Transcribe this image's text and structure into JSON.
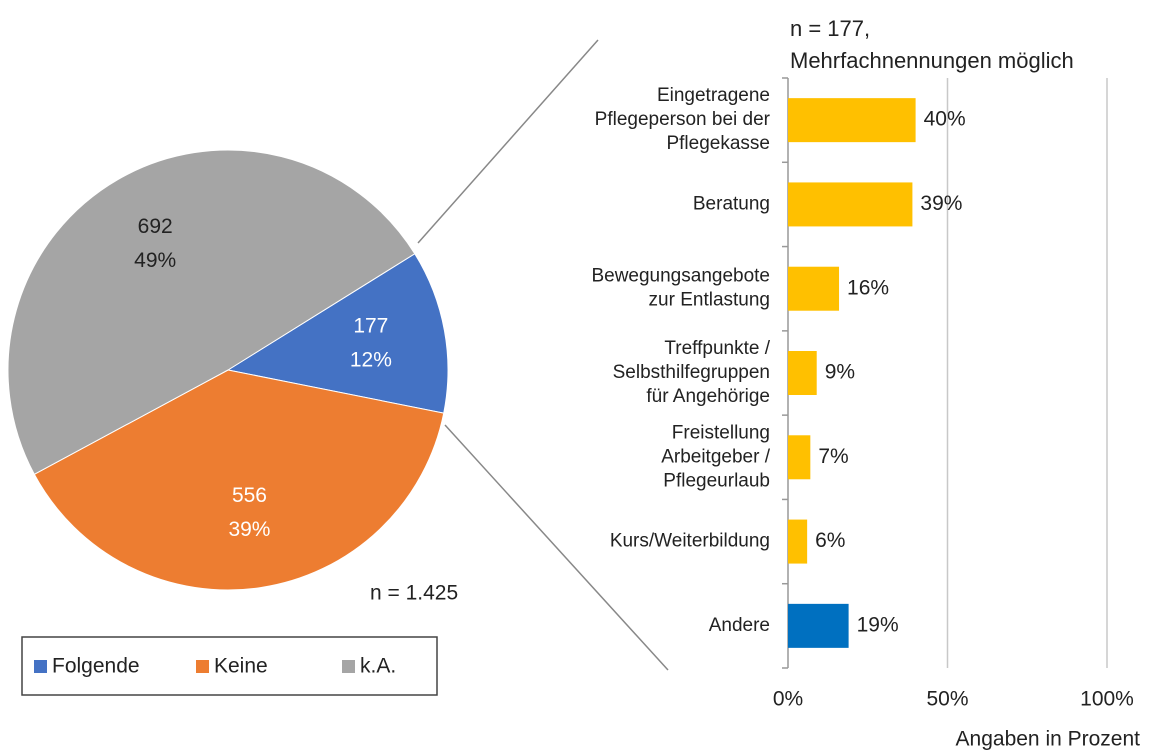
{
  "chart_data": [
    {
      "type": "pie",
      "categories": [
        "Folgende",
        "Keine",
        "k.A."
      ],
      "values": [
        12,
        39,
        49
      ],
      "value_labels": [
        "12%",
        "39%",
        "49%"
      ],
      "counts": [
        177,
        556,
        692
      ],
      "colors": [
        "#4472c4",
        "#ed7d31",
        "#a5a5a5"
      ],
      "annotation": "n = 1.425",
      "legend": "bottom"
    },
    {
      "type": "hbar",
      "title": "n = 177,\nMehrfachnennungen möglich",
      "x_label": "Angaben in Prozent",
      "categories": [
        "Eingetragene\nPflegeperson bei der\nPflegekasse",
        "Beratung",
        "Bewegungsangebote\nzur Entlastung",
        "Treffpunkte /\nSelbsthilfegruppen\nfür Angehörige",
        "Freistellung\nArbeitgeber /\nPflegeurlaub",
        "Kurs/Weiterbildung",
        "Andere"
      ],
      "values": [
        40,
        39,
        16,
        9,
        7,
        6,
        19
      ],
      "value_labels": [
        "40%",
        "39%",
        "16%",
        "9%",
        "7%",
        "6%",
        "19%"
      ],
      "colors": [
        "#ffc000",
        "#ffc000",
        "#ffc000",
        "#ffc000",
        "#ffc000",
        "#ffc000",
        "#0070c0"
      ],
      "xlim": [
        0,
        100
      ],
      "xticks": [
        {
          "value": 0,
          "label": "0%"
        },
        {
          "value": 50,
          "label": "50%"
        },
        {
          "value": 100,
          "label": "100%"
        }
      ],
      "grid": true
    }
  ]
}
